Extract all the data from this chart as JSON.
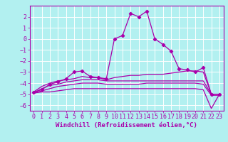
{
  "title": "",
  "xlabel": "Windchill (Refroidissement éolien,°C)",
  "ylabel": "",
  "xlim": [
    -0.5,
    23.5
  ],
  "ylim": [
    -6.5,
    3.0
  ],
  "xticks": [
    0,
    1,
    2,
    3,
    4,
    5,
    6,
    7,
    8,
    9,
    10,
    11,
    12,
    13,
    14,
    15,
    16,
    17,
    18,
    19,
    20,
    21,
    22,
    23
  ],
  "yticks": [
    -6,
    -5,
    -4,
    -3,
    -2,
    -1,
    0,
    1,
    2
  ],
  "background_color": "#b2f0f0",
  "grid_color": "#ffffff",
  "line_color": "#aa00aa",
  "lines": [
    [
      [
        0,
        -4.8
      ],
      [
        1,
        -4.6
      ],
      [
        2,
        -4.1
      ],
      [
        3,
        -3.9
      ],
      [
        4,
        -3.6
      ],
      [
        5,
        -3.0
      ],
      [
        6,
        -2.9
      ],
      [
        7,
        -3.4
      ],
      [
        8,
        -3.5
      ],
      [
        9,
        -3.6
      ],
      [
        10,
        0.0
      ],
      [
        11,
        0.3
      ],
      [
        12,
        2.3
      ],
      [
        13,
        2.0
      ],
      [
        14,
        2.5
      ],
      [
        15,
        0.0
      ],
      [
        16,
        -0.5
      ],
      [
        17,
        -1.1
      ],
      [
        18,
        -2.7
      ],
      [
        19,
        -2.8
      ],
      [
        20,
        -3.0
      ],
      [
        21,
        -2.6
      ],
      [
        22,
        -5.0
      ],
      [
        23,
        -5.0
      ]
    ],
    [
      [
        0,
        -4.8
      ],
      [
        1,
        -4.3
      ],
      [
        2,
        -4.0
      ],
      [
        3,
        -3.8
      ],
      [
        4,
        -3.7
      ],
      [
        5,
        -3.6
      ],
      [
        6,
        -3.4
      ],
      [
        7,
        -3.5
      ],
      [
        8,
        -3.5
      ],
      [
        9,
        -3.7
      ],
      [
        10,
        -3.5
      ],
      [
        11,
        -3.4
      ],
      [
        12,
        -3.3
      ],
      [
        13,
        -3.3
      ],
      [
        14,
        -3.2
      ],
      [
        15,
        -3.2
      ],
      [
        16,
        -3.2
      ],
      [
        17,
        -3.1
      ],
      [
        18,
        -3.0
      ],
      [
        19,
        -2.9
      ],
      [
        20,
        -2.9
      ],
      [
        21,
        -3.0
      ],
      [
        22,
        -5.0
      ],
      [
        23,
        -5.0
      ]
    ],
    [
      [
        0,
        -4.9
      ],
      [
        1,
        -4.5
      ],
      [
        2,
        -4.2
      ],
      [
        3,
        -4.1
      ],
      [
        4,
        -3.9
      ],
      [
        5,
        -3.8
      ],
      [
        6,
        -3.7
      ],
      [
        7,
        -3.7
      ],
      [
        8,
        -3.7
      ],
      [
        9,
        -3.8
      ],
      [
        10,
        -3.8
      ],
      [
        11,
        -3.8
      ],
      [
        12,
        -3.8
      ],
      [
        13,
        -3.8
      ],
      [
        14,
        -3.8
      ],
      [
        15,
        -3.8
      ],
      [
        16,
        -3.8
      ],
      [
        17,
        -3.8
      ],
      [
        18,
        -3.8
      ],
      [
        19,
        -3.8
      ],
      [
        20,
        -3.8
      ],
      [
        21,
        -3.8
      ],
      [
        22,
        -5.0
      ],
      [
        23,
        -5.0
      ]
    ],
    [
      [
        0,
        -4.9
      ],
      [
        1,
        -4.7
      ],
      [
        2,
        -4.5
      ],
      [
        3,
        -4.3
      ],
      [
        4,
        -4.2
      ],
      [
        5,
        -4.1
      ],
      [
        6,
        -4.0
      ],
      [
        7,
        -4.0
      ],
      [
        8,
        -4.0
      ],
      [
        9,
        -4.1
      ],
      [
        10,
        -4.1
      ],
      [
        11,
        -4.1
      ],
      [
        12,
        -4.1
      ],
      [
        13,
        -4.1
      ],
      [
        14,
        -4.0
      ],
      [
        15,
        -4.0
      ],
      [
        16,
        -4.0
      ],
      [
        17,
        -4.0
      ],
      [
        18,
        -4.0
      ],
      [
        19,
        -4.0
      ],
      [
        20,
        -4.0
      ],
      [
        21,
        -4.1
      ],
      [
        22,
        -5.1
      ],
      [
        23,
        -5.1
      ]
    ],
    [
      [
        0,
        -4.9
      ],
      [
        1,
        -4.8
      ],
      [
        2,
        -4.8
      ],
      [
        3,
        -4.7
      ],
      [
        4,
        -4.6
      ],
      [
        5,
        -4.5
      ],
      [
        6,
        -4.5
      ],
      [
        7,
        -4.5
      ],
      [
        8,
        -4.5
      ],
      [
        9,
        -4.5
      ],
      [
        10,
        -4.5
      ],
      [
        11,
        -4.5
      ],
      [
        12,
        -4.5
      ],
      [
        13,
        -4.5
      ],
      [
        14,
        -4.5
      ],
      [
        15,
        -4.5
      ],
      [
        16,
        -4.5
      ],
      [
        17,
        -4.5
      ],
      [
        18,
        -4.5
      ],
      [
        19,
        -4.5
      ],
      [
        20,
        -4.5
      ],
      [
        21,
        -4.6
      ],
      [
        22,
        -6.3
      ],
      [
        23,
        -5.0
      ]
    ]
  ],
  "font_size": 6.5,
  "tick_font_size": 6,
  "xlabel_fontsize": 6.5
}
